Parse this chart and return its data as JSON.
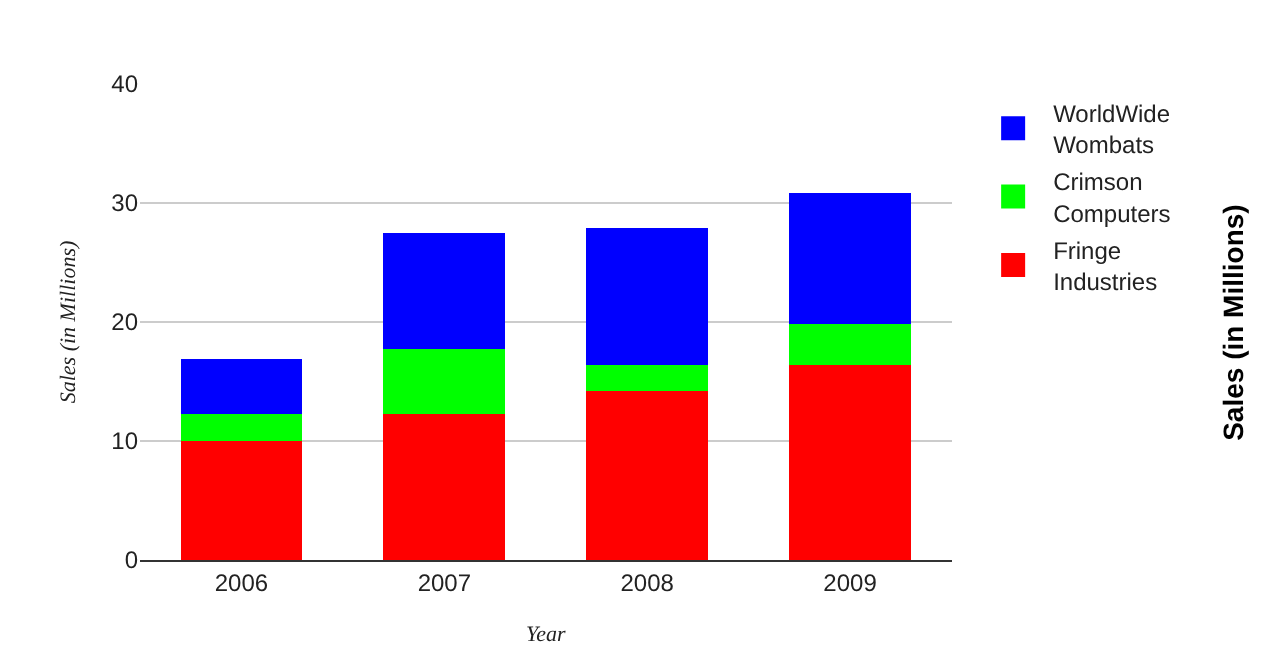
{
  "chart_data": {
    "type": "bar",
    "stacked": true,
    "xlabel": "Year",
    "ylabel": "Sales (in Millions)",
    "annotations": [
      "Sales (in Millions)"
    ],
    "categories": [
      "2006",
      "2007",
      "2008",
      "2009"
    ],
    "series": [
      {
        "name": "Fringe Industries",
        "color": "#ff0000",
        "values": [
          10,
          12.3,
          14.2,
          16.4
        ]
      },
      {
        "name": "Crimson Computers",
        "color": "#00ff00",
        "values": [
          2.3,
          5.4,
          2.2,
          3.4
        ]
      },
      {
        "name": "WorldWide Wombats",
        "color": "#0000ff",
        "values": [
          4.6,
          9.8,
          11.5,
          11.0
        ]
      }
    ],
    "ylim": [
      0,
      40
    ],
    "yticks": [
      0,
      10,
      20,
      30,
      40
    ],
    "grid": "y",
    "legend": "right"
  }
}
